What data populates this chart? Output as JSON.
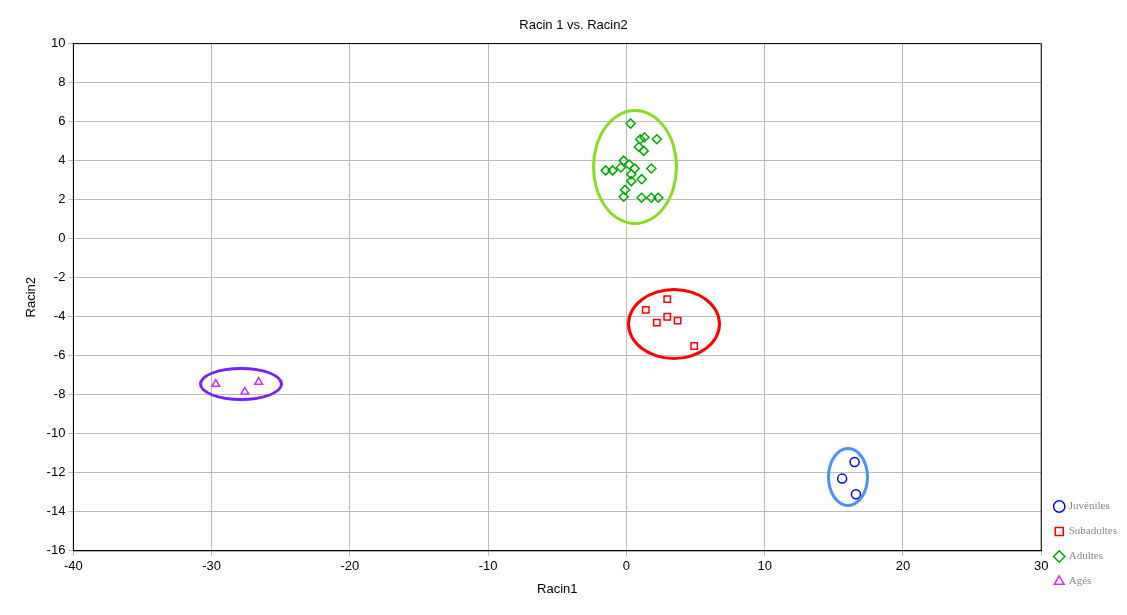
{
  "chart_data": {
    "type": "scatter",
    "title": "Racin 1 vs. Racin2",
    "xlabel": "Racin1",
    "ylabel": "Racin2",
    "xlim": [
      -40,
      30
    ],
    "xticks": [
      -40,
      -30,
      -20,
      -10,
      0,
      10,
      20,
      30
    ],
    "ylim": [
      -16,
      10
    ],
    "yticks": [
      -16,
      -14,
      -12,
      -10,
      -8,
      -6,
      -4,
      -2,
      0,
      2,
      4,
      6,
      8,
      10
    ],
    "grid": true,
    "legend": "bottom right",
    "series": [
      {
        "name": "Juvéniles",
        "color": "#0000ff",
        "marker": "circle",
        "x": [
          16.5,
          15.6,
          16.6
        ],
        "values": [
          -11.45,
          -12.3,
          -13.1
        ]
      },
      {
        "name": "Subadultes",
        "color": "#ff0000",
        "marker": "square",
        "x": [
          2.95,
          1.4,
          2.2,
          2.95,
          3.7,
          4.9
        ],
        "values": [
          -3.1,
          -3.65,
          -4.3,
          -4.0,
          -4.2,
          -5.5
        ]
      },
      {
        "name": "Adultes",
        "color": "#00aa00",
        "marker": "diamond",
        "x": [
          0.3,
          1.0,
          1.3,
          2.2,
          0.9,
          1.25,
          -0.2,
          0.2,
          -0.4,
          -1.5,
          -1.0,
          0.6,
          1.8,
          0.35,
          1.1,
          0.35,
          -0.1,
          -0.2,
          1.1,
          1.8,
          2.3
        ],
        "values": [
          5.9,
          5.1,
          5.2,
          5.1,
          4.7,
          4.5,
          4.0,
          3.8,
          3.65,
          3.5,
          3.5,
          3.6,
          3.6,
          3.3,
          3.05,
          2.95,
          2.5,
          2.15,
          2.1,
          2.1,
          2.1
        ]
      },
      {
        "name": "Agés",
        "color": "#cc33ff",
        "marker": "triangle",
        "x": [
          -29.7,
          -27.6,
          -26.6
        ],
        "values": [
          -7.45,
          -7.85,
          -7.35
        ]
      }
    ]
  }
}
